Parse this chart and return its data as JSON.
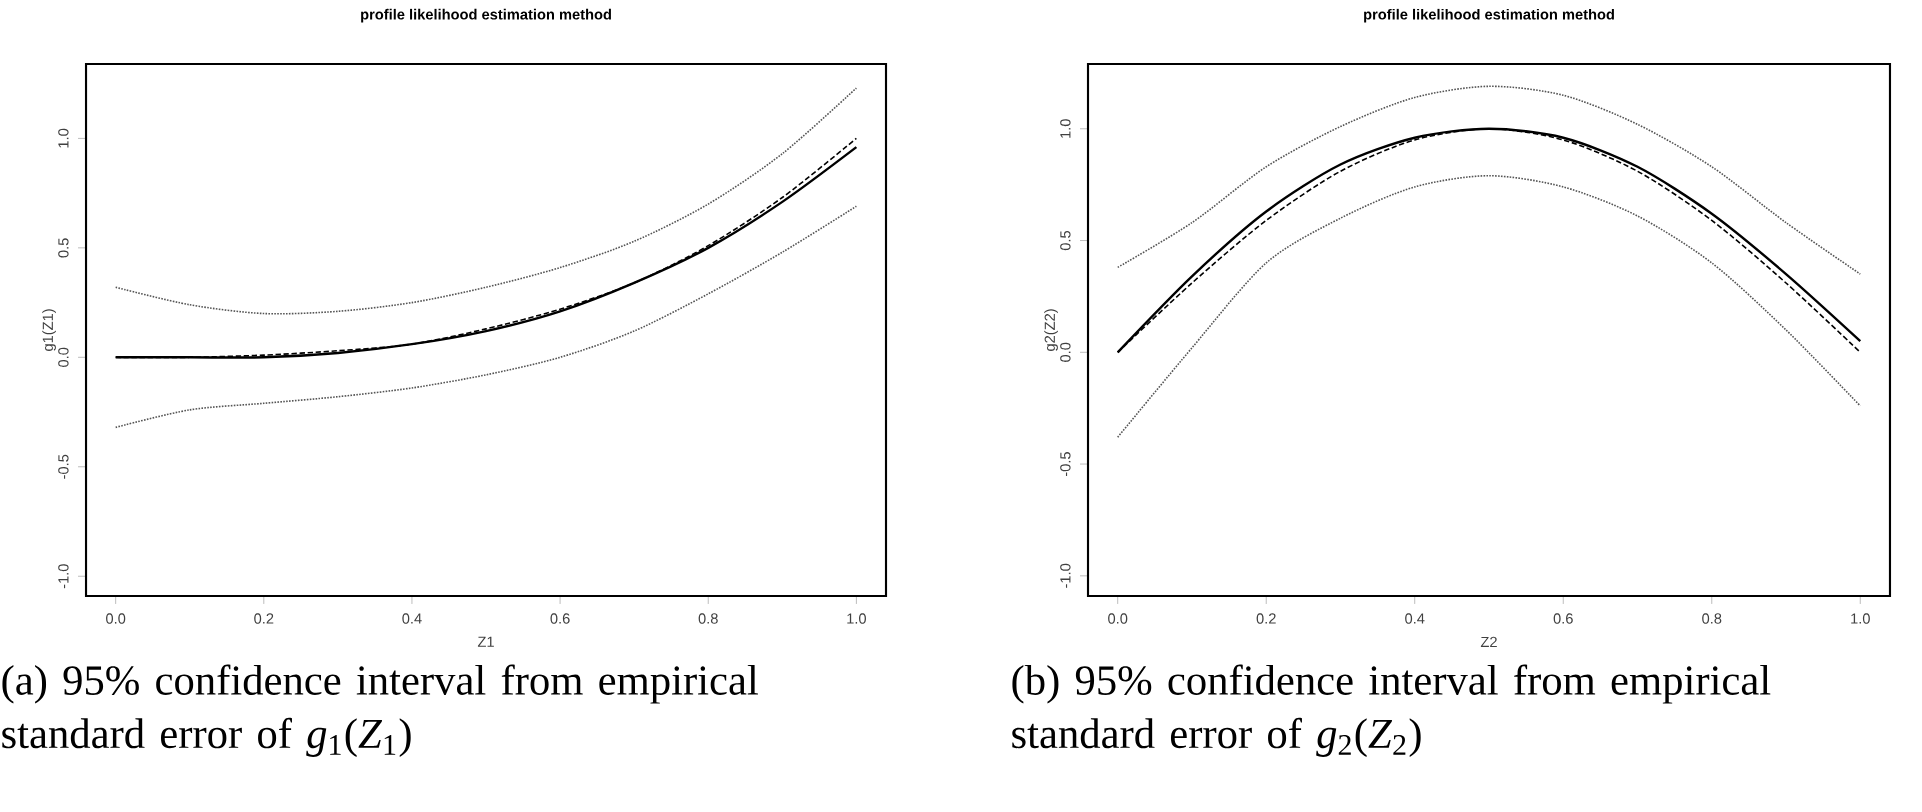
{
  "chart_data": [
    {
      "type": "line",
      "title": "profile likelihood estimation method",
      "xlabel": "Z1",
      "ylabel": "g1(Z1)",
      "x": [
        0,
        0.1,
        0.2,
        0.3,
        0.4,
        0.5,
        0.6,
        0.7,
        0.8,
        0.9,
        1.0
      ],
      "series": [
        {
          "color": "#000000",
          "line_style": "solid",
          "values": [
            0,
            0.0,
            0.0,
            0.02,
            0.06,
            0.12,
            0.21,
            0.34,
            0.5,
            0.71,
            0.96
          ]
        },
        {
          "color": "#000000",
          "line_style": "dashed",
          "values": [
            0,
            0.0,
            0.01,
            0.03,
            0.06,
            0.13,
            0.22,
            0.34,
            0.51,
            0.73,
            1.0
          ]
        },
        {
          "color": "#555555",
          "line_style": "dotted",
          "values": [
            0.32,
            0.24,
            0.2,
            0.21,
            0.25,
            0.32,
            0.41,
            0.53,
            0.7,
            0.93,
            1.23
          ]
        },
        {
          "color": "#555555",
          "line_style": "dotted",
          "values": [
            -0.32,
            -0.24,
            -0.21,
            -0.18,
            -0.14,
            -0.08,
            0.0,
            0.12,
            0.29,
            0.48,
            0.69
          ]
        }
      ],
      "xlim": [
        -0.04,
        1.04
      ],
      "ylim": [
        -1.09,
        1.34
      ],
      "xticks": [
        {
          "value": 0,
          "label": "0.0"
        },
        {
          "value": 0.2,
          "label": "0.2"
        },
        {
          "value": 0.4,
          "label": "0.4"
        },
        {
          "value": 0.6,
          "label": "0.6"
        },
        {
          "value": 0.8,
          "label": "0.8"
        },
        {
          "value": 1.0,
          "label": "1.0"
        }
      ],
      "yticks": [
        {
          "value": -1,
          "label": "-1.0"
        },
        {
          "value": -0.5,
          "label": "-0.5"
        },
        {
          "value": 0,
          "label": "0.0"
        },
        {
          "value": 0.5,
          "label": "0.5"
        },
        {
          "value": 1.0,
          "label": "1.0"
        }
      ],
      "annotations": [
        "(a) 95% confidence interval from empirical standard error of *g*$_{1}$(*Z*$_{1}$)"
      ]
    },
    {
      "type": "line",
      "title": "profile likelihood estimation method",
      "xlabel": "Z2",
      "ylabel": "g2(Z2)",
      "x": [
        0,
        0.1,
        0.2,
        0.3,
        0.4,
        0.5,
        0.6,
        0.7,
        0.8,
        0.9,
        1.0
      ],
      "series": [
        {
          "color": "#000000",
          "line_style": "solid",
          "values": [
            0,
            0.34,
            0.63,
            0.84,
            0.96,
            1.0,
            0.96,
            0.83,
            0.62,
            0.35,
            0.05
          ]
        },
        {
          "color": "#000000",
          "line_style": "dashed",
          "values": [
            0,
            0.31,
            0.59,
            0.81,
            0.95,
            1.0,
            0.95,
            0.81,
            0.59,
            0.31,
            0.0
          ]
        },
        {
          "color": "#555555",
          "line_style": "dotted",
          "values": [
            0.38,
            0.58,
            0.83,
            1.01,
            1.14,
            1.19,
            1.15,
            1.02,
            0.83,
            0.58,
            0.35
          ]
        },
        {
          "color": "#555555",
          "line_style": "dotted",
          "values": [
            -0.38,
            0.02,
            0.4,
            0.6,
            0.74,
            0.79,
            0.74,
            0.61,
            0.4,
            0.1,
            -0.24
          ]
        }
      ],
      "xlim": [
        -0.04,
        1.04
      ],
      "ylim": [
        -1.09,
        1.29
      ],
      "xticks": [
        {
          "value": 0,
          "label": "0.0"
        },
        {
          "value": 0.2,
          "label": "0.2"
        },
        {
          "value": 0.4,
          "label": "0.4"
        },
        {
          "value": 0.6,
          "label": "0.6"
        },
        {
          "value": 0.8,
          "label": "0.8"
        },
        {
          "value": 1.0,
          "label": "1.0"
        }
      ],
      "yticks": [
        {
          "value": -1,
          "label": "-1.0"
        },
        {
          "value": -0.5,
          "label": "-0.5"
        },
        {
          "value": 0,
          "label": "0.0"
        },
        {
          "value": 0.5,
          "label": "0.5"
        },
        {
          "value": 1.0,
          "label": "1.0"
        }
      ],
      "annotations": [
        "(b) 95% confidence interval from empirical standard error of *g*$_{2}$(*Z*$_{2}$)"
      ]
    }
  ]
}
